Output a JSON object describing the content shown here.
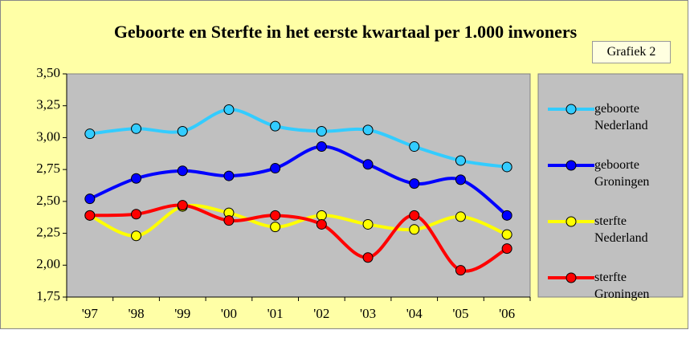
{
  "chart_data": {
    "type": "line",
    "title": "Geboorte en Sterfte in het eerste kwartaal per 1.000 inwoners",
    "annotation": "Grafiek 2",
    "categories": [
      "'97",
      "'98",
      "'99",
      "'00",
      "'01",
      "'02",
      "'03",
      "'04",
      "'05",
      "'06"
    ],
    "series": [
      {
        "name": "geboorte Nederland",
        "color": "#33ccff",
        "values": [
          3.03,
          3.07,
          3.05,
          3.22,
          3.09,
          3.05,
          3.06,
          2.93,
          2.82,
          2.77
        ]
      },
      {
        "name": "geboorte Groningen",
        "color": "#0000ff",
        "values": [
          2.52,
          2.68,
          2.74,
          2.7,
          2.76,
          2.93,
          2.79,
          2.64,
          2.67,
          2.39
        ]
      },
      {
        "name": "sterfte Nederland",
        "color": "#ffff00",
        "values": [
          2.39,
          2.23,
          2.46,
          2.41,
          2.3,
          2.39,
          2.32,
          2.28,
          2.38,
          2.24
        ]
      },
      {
        "name": "sterfte Groningen",
        "color": "#ff0000",
        "values": [
          2.39,
          2.4,
          2.47,
          2.35,
          2.39,
          2.32,
          2.06,
          2.39,
          1.96,
          2.13
        ]
      }
    ],
    "ylim": [
      1.75,
      3.5
    ],
    "yticks": [
      {
        "value": 1.75,
        "label": "1,75"
      },
      {
        "value": 2,
        "label": "2,00"
      },
      {
        "value": 2.25,
        "label": "2,25"
      },
      {
        "value": 2.5,
        "label": "2,50"
      },
      {
        "value": 2.75,
        "label": "2,75"
      },
      {
        "value": 3,
        "label": "3,00"
      },
      {
        "value": 3.25,
        "label": "3,25"
      },
      {
        "value": 3.5,
        "label": "3,50"
      }
    ],
    "grid": false,
    "legend": "right"
  }
}
